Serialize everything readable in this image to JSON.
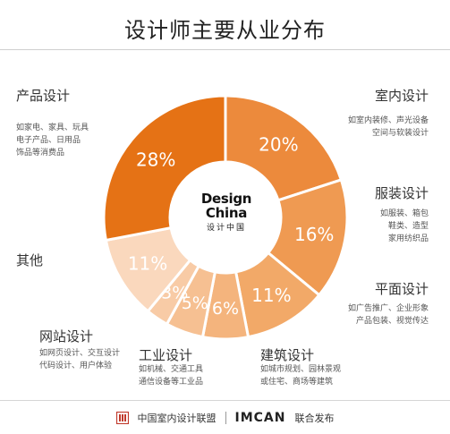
{
  "title": "设计师主要从业分布",
  "center": {
    "line1": "Design",
    "line2": "China",
    "line3": "设计中国"
  },
  "segments": [
    {
      "key": "interior",
      "title": "室内设计",
      "desc": "如室内装修、声光设备\n空间与软装设计",
      "value": 20,
      "label": "20%",
      "color": "#ec8a3c"
    },
    {
      "key": "fashion",
      "title": "服装设计",
      "desc": "如服装、箱包\n鞋类、造型\n家用纺织品",
      "value": 16,
      "label": "16%",
      "color": "#ef9a52"
    },
    {
      "key": "graphic",
      "title": "平面设计",
      "desc": "如广告推广、企业形象\n产品包装、视觉传达",
      "value": 11,
      "label": "11%",
      "color": "#f2a968"
    },
    {
      "key": "architecture",
      "title": "建筑设计",
      "desc": "如城市规划、园林景观\n或住宅、商场等建筑",
      "value": 6,
      "label": "6%",
      "color": "#f4b47d"
    },
    {
      "key": "industrial",
      "title": "工业设计",
      "desc": "如机械、交通工具\n通信设备等工业品",
      "value": 5,
      "label": "5%",
      "color": "#f6c092"
    },
    {
      "key": "web",
      "title": "网站设计",
      "desc": "如网页设计、交互设计\n代码设计、用户体验",
      "value": 3,
      "label": "3%",
      "color": "#f8cba6"
    },
    {
      "key": "other",
      "title": "其他",
      "desc": "",
      "value": 11,
      "label": "11%",
      "color": "#fad8bd"
    },
    {
      "key": "product",
      "title": "产品设计",
      "desc": "如家电、家具、玩具\n电子产品、日用品\n饰品等消费品",
      "value": 28,
      "label": "28%",
      "color": "#e57215"
    }
  ],
  "chart_data": {
    "type": "pie",
    "title": "设计师主要从业分布",
    "categories": [
      "室内设计",
      "服装设计",
      "平面设计",
      "建筑设计",
      "工业设计",
      "网站设计",
      "其他",
      "产品设计"
    ],
    "values": [
      20,
      16,
      11,
      6,
      5,
      3,
      11,
      28
    ],
    "unit": "%"
  },
  "footer": {
    "org": "中国室内设计联盟",
    "brand": "IMCAN",
    "suffix": "联合发布",
    "logo_color": "#c0392b"
  }
}
